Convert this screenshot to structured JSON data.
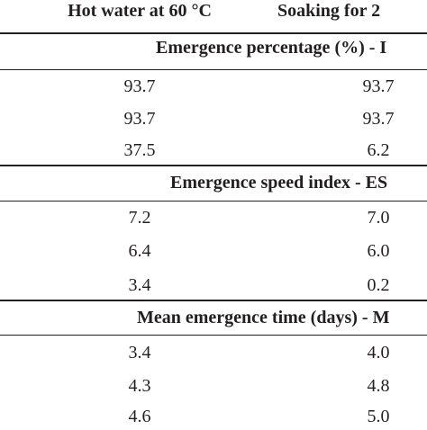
{
  "table": {
    "header": {
      "col1": "Hot water at 60 °C",
      "col2": "Soaking for 2"
    },
    "sections": [
      {
        "title": "Emergence percentage (%) - I",
        "rows": [
          {
            "c1": "93.7",
            "c2": "93.7"
          },
          {
            "c1": "93.7",
            "c2": "93.7"
          },
          {
            "c1": "37.5",
            "c2": "6.2"
          }
        ]
      },
      {
        "title": "Emergence speed index - ES",
        "rows": [
          {
            "c1": "7.2",
            "c2": "7.0"
          },
          {
            "c1": "6.4",
            "c2": "6.0"
          },
          {
            "c1": "3.4",
            "c2": "0.2"
          }
        ]
      },
      {
        "title": "Mean emergence time (days) - M",
        "rows": [
          {
            "c1": "3.4",
            "c2": "4.0"
          },
          {
            "c1": "4.3",
            "c2": "4.8"
          },
          {
            "c1": "4.6",
            "c2": "5.0"
          }
        ]
      }
    ]
  }
}
